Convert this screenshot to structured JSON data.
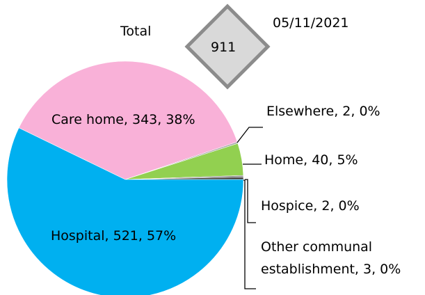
{
  "chart_data": {
    "type": "pie",
    "title": "Total",
    "total": 911,
    "date": "05/11/2021",
    "categories": [
      "Care home",
      "Elsewhere",
      "Home",
      "Hospice",
      "Other communal establishment",
      "Hospital"
    ],
    "values": [
      343,
      2,
      40,
      2,
      3,
      521
    ],
    "value_labels": [
      "Care home, 343, 38%",
      "Elsewhere, 2, 0%",
      "Home, 40, 5%",
      "Hospice, 2, 0%",
      "Other communal establishment, 3, 0%",
      "Hospital, 521, 57%"
    ],
    "colors": [
      "#f9b1d8",
      "#a6a6a6",
      "#92d050",
      "#7f7f7f",
      "#404040",
      "#00b0f0"
    ]
  }
}
